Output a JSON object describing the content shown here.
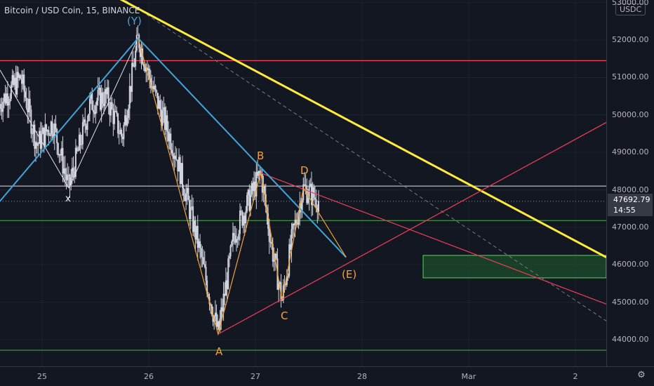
{
  "chart_title": "Bitcoin / USD Coin, 15, BINANCE",
  "currency": "USDC",
  "current_price": "47692.79",
  "countdown": "14:55",
  "y_axis": {
    "ticks": [
      "53000.00",
      "52000.00",
      "51000.00",
      "50000.00",
      "49000.00",
      "48000.00",
      "47000.00",
      "46000.00",
      "45000.00",
      "44000.00"
    ]
  },
  "x_axis": {
    "ticks": [
      "25",
      "26",
      "27",
      "28",
      "Mar",
      "2"
    ]
  },
  "wave_labels": {
    "x": "x",
    "y_top": "(Y)",
    "b": "B",
    "d": "D",
    "a": "A",
    "c": "C",
    "e": "(E)"
  },
  "colors": {
    "background": "#131722",
    "candle": "#d1d4dc",
    "yellow_trend": "#ffeb3b",
    "blue_wave": "#42a5d8",
    "orange_wave": "#f7a133",
    "red_line": "#ef3f5a",
    "green_line": "#4caf50",
    "zone_fill": "#1e4d2b",
    "zone_border": "#4cde4c"
  },
  "chart_data": {
    "type": "line",
    "title": "Bitcoin / USD Coin, 15, BINANCE",
    "xlabel": "",
    "ylabel": "",
    "ylim": [
      43300,
      53000
    ],
    "x_ticks": [
      "25",
      "26",
      "27",
      "28",
      "Mar",
      "2"
    ],
    "y_ticks": [
      44000,
      45000,
      46000,
      47000,
      48000,
      49000,
      50000,
      51000,
      52000,
      53000
    ],
    "last_price": 47692.79,
    "horizontal_levels": [
      {
        "name": "red resistance",
        "value": 51450
      },
      {
        "name": "white level",
        "value": 48100
      },
      {
        "name": "green support",
        "value": 47180
      },
      {
        "name": "green support low",
        "value": 43720
      }
    ],
    "target_zone": {
      "x_from": "27.6 Feb",
      "x_to": "2.3 Mar",
      "y_from": 45650,
      "y_to": 46250
    },
    "wave_points": [
      {
        "label": "x",
        "t": 25.25,
        "price": 48050
      },
      {
        "label": "(Y)",
        "t": 25.9,
        "price": 52050
      },
      {
        "label": "A",
        "t": 26.65,
        "price": 44150
      },
      {
        "label": "B",
        "t": 27.05,
        "price": 48450
      },
      {
        "label": "C",
        "t": 27.25,
        "price": 45050
      },
      {
        "label": "D",
        "t": 27.45,
        "price": 48050
      },
      {
        "label": "(E)",
        "t": 27.85,
        "price": 46200
      }
    ]
  }
}
